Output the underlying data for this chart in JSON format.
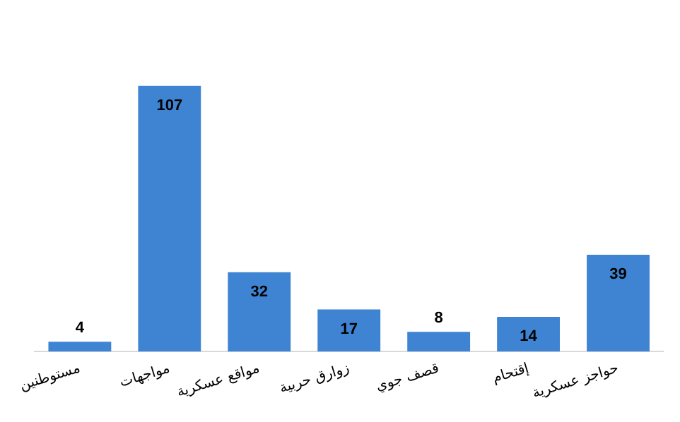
{
  "chart_data": {
    "type": "bar",
    "categories": [
      "مستوطنين",
      "مواجهات",
      "مواقع عسكرية",
      "زوارق حربية",
      "قصف جوي",
      "إقتحام",
      "حواجز عسكرية"
    ],
    "values": [
      4,
      107,
      32,
      17,
      8,
      14,
      39
    ],
    "color": "#3f84d2",
    "data_labels": true,
    "grid": false,
    "legend": false
  }
}
